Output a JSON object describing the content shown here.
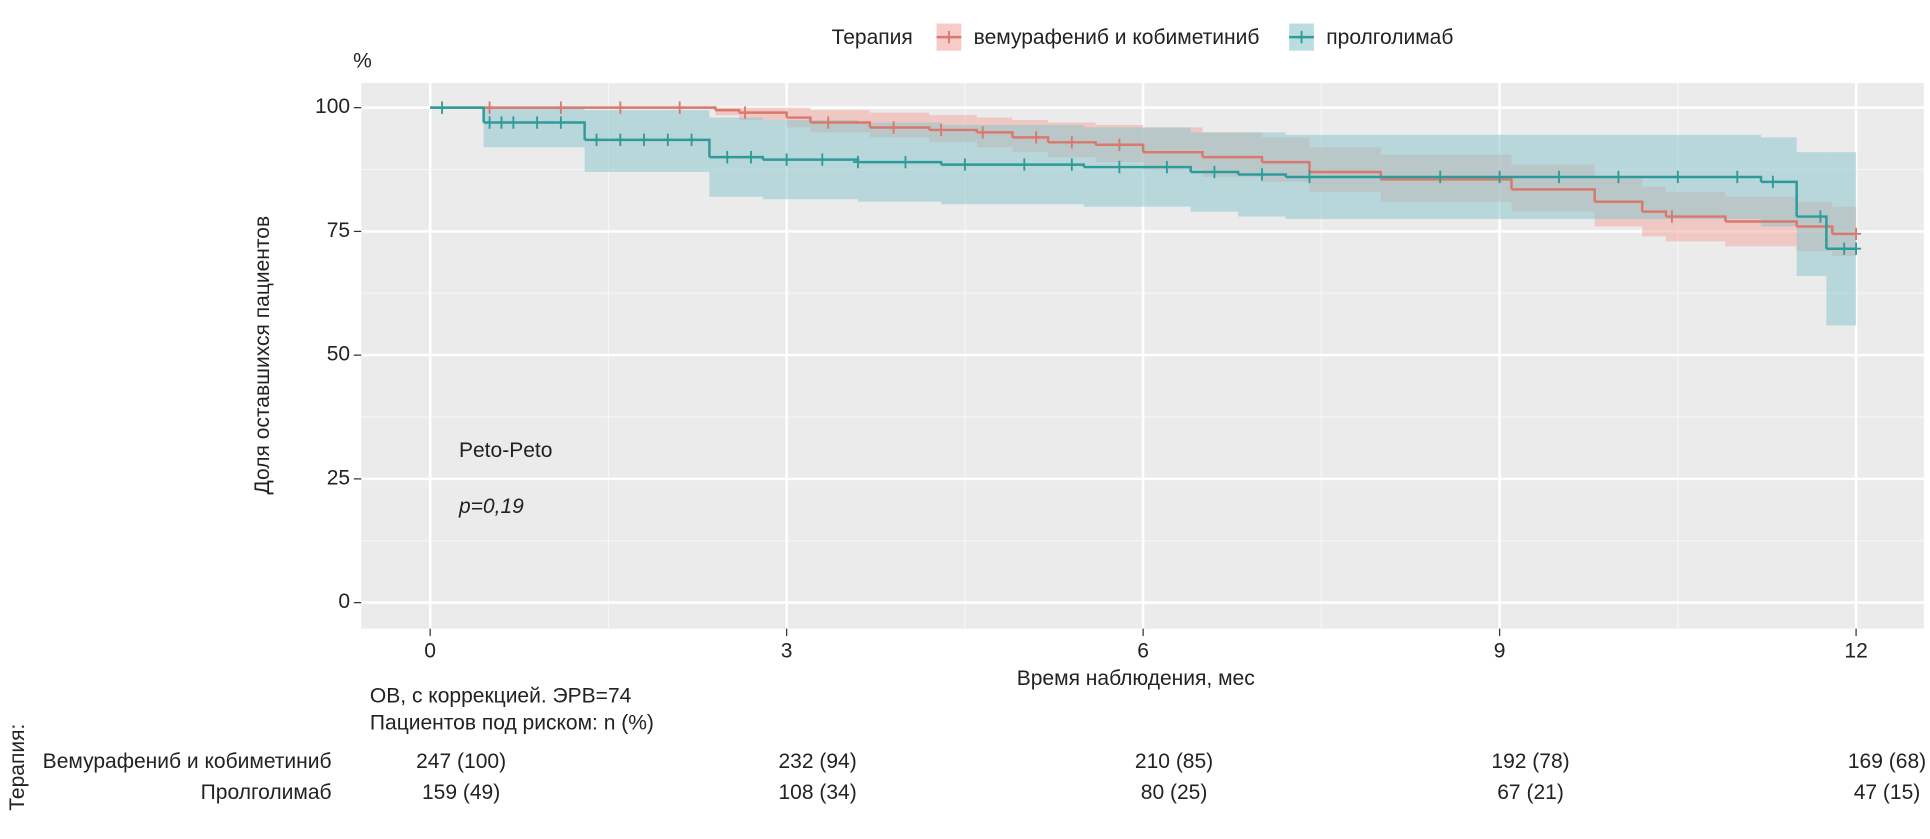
{
  "chart_data": {
    "type": "survival",
    "y_unit_label": "%",
    "xlabel": "Время наблюдения, мес",
    "ylabel": "Доля оставшихся пациентов",
    "xlim": [
      -0.58,
      12.57
    ],
    "ylim": [
      -5.25,
      105
    ],
    "xticks": [
      0,
      3,
      6,
      9,
      12
    ],
    "yticks": [
      0,
      25,
      50,
      75,
      100
    ],
    "grid": true,
    "legend": {
      "title": "Терапия",
      "position": "top"
    },
    "annotations": [
      "Peto-Peto",
      "p=0,19"
    ],
    "series": [
      {
        "name": "вемурафениб и кобиметиниб",
        "color": "#d9786c",
        "band_color": "#f2aaa3",
        "x": [
          0,
          2.4,
          2.6,
          3.0,
          3.2,
          3.7,
          4.2,
          4.6,
          4.9,
          5.2,
          5.6,
          6.0,
          6.5,
          7.0,
          7.4,
          8.0,
          9.1,
          9.8,
          10.2,
          10.4,
          10.9,
          11.5,
          11.8
        ],
        "values": [
          100,
          99.5,
          99,
          98,
          97,
          96,
          95.5,
          95,
          94,
          93,
          92.5,
          91,
          90,
          89,
          87,
          85.5,
          83.5,
          81,
          79,
          78,
          77,
          76,
          74.5
        ],
        "lower": [
          100,
          98.5,
          97.5,
          96,
          95,
          94,
          93,
          92,
          91,
          90,
          89,
          87.5,
          86,
          85,
          83,
          81,
          79,
          76,
          74,
          73,
          72,
          71,
          70
        ],
        "upper": [
          100,
          100,
          100,
          100,
          99.5,
          99,
          98.5,
          98,
          97.5,
          97,
          96.5,
          96,
          95,
          94,
          92,
          90.5,
          88.5,
          86,
          84,
          83,
          82,
          81,
          80
        ],
        "censored": [
          0.5,
          1.1,
          1.6,
          2.1,
          2.65,
          3.35,
          3.9,
          4.3,
          4.65,
          5.1,
          5.4,
          5.8,
          10.45,
          12
        ]
      },
      {
        "name": "пролголимаб",
        "color": "#2e9b9b",
        "band_color": "#8ec7cc",
        "x": [
          0,
          0.45,
          1.3,
          2.35,
          2.8,
          3.6,
          4.3,
          5.5,
          6.4,
          6.8,
          7.2,
          11.2,
          11.5,
          11.75
        ],
        "values": [
          100,
          97,
          93.5,
          90,
          89.5,
          89,
          88.5,
          88,
          87,
          86.5,
          86,
          85,
          78,
          71.5
        ],
        "lower": [
          100,
          92,
          87,
          82,
          81.5,
          81,
          80.5,
          80,
          79,
          78,
          77.5,
          76,
          66,
          56
        ],
        "upper": [
          100,
          100,
          99.5,
          98,
          97.5,
          97,
          96.5,
          96,
          95,
          95,
          94.5,
          94,
          91,
          91
        ],
        "censored": [
          0.1,
          0.5,
          0.6,
          0.7,
          0.9,
          1.1,
          1.4,
          1.6,
          1.8,
          2.0,
          2.2,
          2.5,
          2.7,
          3.0,
          3.3,
          3.6,
          4.0,
          4.5,
          5.0,
          5.4,
          5.8,
          6.2,
          6.6,
          7.0,
          7.4,
          8.5,
          9.0,
          9.5,
          10.0,
          10.5,
          11.0,
          11.3,
          11.7,
          11.9,
          12
        ]
      }
    ],
    "risk_table": {
      "title": "Терапия:",
      "notes": [
        "ОВ, с коррекцией. ЭРВ=74",
        "Пациентов под риском: n (%)"
      ],
      "rows": [
        {
          "name": "Вемурафениб и кобиметиниб",
          "color": "#d9786c",
          "values": [
            "247 (100)",
            "232 (94)",
            "210 (85)",
            "192 (78)",
            "169 (68)"
          ]
        },
        {
          "name": "Пролголимаб",
          "color": "#2e9b9b",
          "values": [
            "159 (49)",
            "108 (34)",
            "80 (25)",
            "67 (21)",
            "47 (15)"
          ]
        }
      ]
    }
  }
}
